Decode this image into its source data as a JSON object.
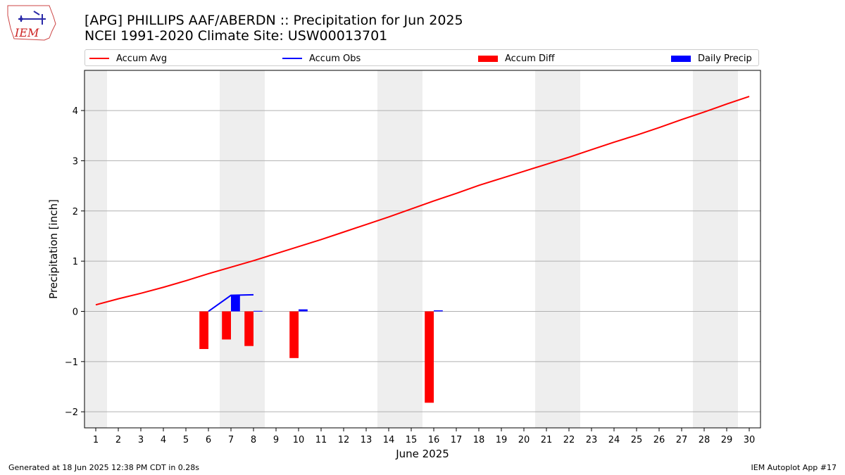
{
  "header": {
    "title_line1": "[APG] PHILLIPS AAF/ABERDN :: Precipitation for Jun 2025",
    "title_line2": "NCEI 1991-2020 Climate Site: USW00013701",
    "logo_text": "IEM"
  },
  "legend": {
    "items": [
      {
        "label": "Accum Avg",
        "kind": "line",
        "color": "#ff0000"
      },
      {
        "label": "Accum Obs",
        "kind": "line",
        "color": "#0000ff"
      },
      {
        "label": "Accum Diff",
        "kind": "box",
        "color": "#ff0000"
      },
      {
        "label": "Daily Precip",
        "kind": "box",
        "color": "#0000ff"
      }
    ]
  },
  "footer": {
    "left": "Generated at 18 Jun 2025 12:38 PM CDT in 0.28s",
    "right": "IEM Autoplot App #17"
  },
  "chart_data": {
    "type": "bar",
    "xlabel": "June 2025",
    "ylabel": "Precipitation [inch]",
    "x": [
      1,
      2,
      3,
      4,
      5,
      6,
      7,
      8,
      9,
      10,
      11,
      12,
      13,
      14,
      15,
      16,
      17,
      18,
      19,
      20,
      21,
      22,
      23,
      24,
      25,
      26,
      27,
      28,
      29,
      30
    ],
    "xlim": [
      0.5,
      30.5
    ],
    "ylim": [
      -2.32,
      4.8
    ],
    "yticks": [
      -2,
      -1,
      0,
      1,
      2,
      3,
      4
    ],
    "grid": "horizontal",
    "weekend_shading": [
      [
        0.5,
        1.5
      ],
      [
        6.5,
        8.5
      ],
      [
        13.5,
        15.5
      ],
      [
        20.5,
        22.5
      ],
      [
        27.5,
        29.5
      ]
    ],
    "shade_color": "#eeeeee",
    "legend_position": "top",
    "series": [
      {
        "name": "Accum Avg",
        "type": "line",
        "color": "#ff0000",
        "x": [
          1,
          2,
          3,
          4,
          5,
          6,
          7,
          8,
          9,
          10,
          11,
          12,
          13,
          14,
          15,
          16,
          17,
          18,
          19,
          20,
          21,
          22,
          23,
          24,
          25,
          26,
          27,
          28,
          29,
          30
        ],
        "values": [
          0.13,
          0.25,
          0.36,
          0.48,
          0.61,
          0.75,
          0.88,
          1.01,
          1.15,
          1.29,
          1.43,
          1.58,
          1.73,
          1.88,
          2.04,
          2.2,
          2.35,
          2.51,
          2.65,
          2.79,
          2.93,
          3.07,
          3.22,
          3.37,
          3.51,
          3.66,
          3.82,
          3.97,
          4.13,
          4.28
        ]
      },
      {
        "name": "Accum Obs",
        "type": "line",
        "color": "#0000ff",
        "x": [
          6,
          7,
          8
        ],
        "values": [
          0.0,
          0.32,
          0.33
        ]
      },
      {
        "name": "Accum Diff",
        "type": "bar",
        "color": "#ff0000",
        "offset": -0.2,
        "x": [
          6,
          7,
          8,
          10,
          16
        ],
        "values": [
          -0.75,
          -0.56,
          -0.69,
          -0.93,
          -1.82
        ]
      },
      {
        "name": "Daily Precip",
        "type": "bar",
        "color": "#0000ff",
        "offset": 0.2,
        "x": [
          7,
          8,
          10,
          16
        ],
        "values": [
          0.32,
          0.01,
          0.04,
          0.02
        ]
      }
    ]
  }
}
